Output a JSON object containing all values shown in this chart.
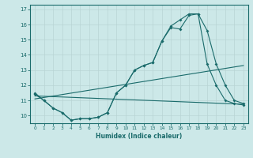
{
  "title": "",
  "xlabel": "Humidex (Indice chaleur)",
  "bg_color": "#cce8e8",
  "line_color": "#1a6b6b",
  "grid_color": "#b8d4d4",
  "xlim": [
    -0.5,
    23.5
  ],
  "ylim": [
    9.5,
    17.3
  ],
  "xticks": [
    0,
    1,
    2,
    3,
    4,
    5,
    6,
    7,
    8,
    9,
    10,
    11,
    12,
    13,
    14,
    15,
    16,
    17,
    18,
    19,
    20,
    21,
    22,
    23
  ],
  "yticks": [
    10,
    11,
    12,
    13,
    14,
    15,
    16,
    17
  ],
  "line1_x": [
    0,
    1,
    2,
    3,
    4,
    5,
    6,
    7,
    8,
    9,
    10,
    11,
    12,
    13,
    14,
    15,
    16,
    17,
    18,
    19,
    20,
    21,
    22,
    23
  ],
  "line1_y": [
    11.5,
    11.0,
    10.5,
    10.2,
    9.7,
    9.8,
    9.8,
    9.9,
    10.2,
    11.5,
    12.0,
    13.0,
    13.3,
    13.5,
    14.9,
    15.8,
    15.7,
    16.6,
    16.7,
    15.6,
    13.4,
    12.0,
    11.0,
    10.8
  ],
  "line2_x": [
    0,
    1,
    2,
    3,
    4,
    5,
    6,
    7,
    8,
    9,
    10,
    11,
    12,
    13,
    14,
    15,
    16,
    17,
    18,
    19,
    20,
    21,
    22,
    23
  ],
  "line2_y": [
    11.4,
    11.0,
    10.5,
    10.2,
    9.7,
    9.8,
    9.8,
    9.9,
    10.2,
    11.5,
    12.0,
    13.0,
    13.3,
    13.5,
    14.9,
    15.9,
    16.3,
    16.7,
    16.7,
    13.4,
    12.0,
    11.0,
    10.8,
    10.7
  ],
  "line3_x": [
    0,
    23
  ],
  "line3_y": [
    11.3,
    10.75
  ],
  "line4_x": [
    0,
    23
  ],
  "line4_y": [
    11.1,
    13.3
  ]
}
